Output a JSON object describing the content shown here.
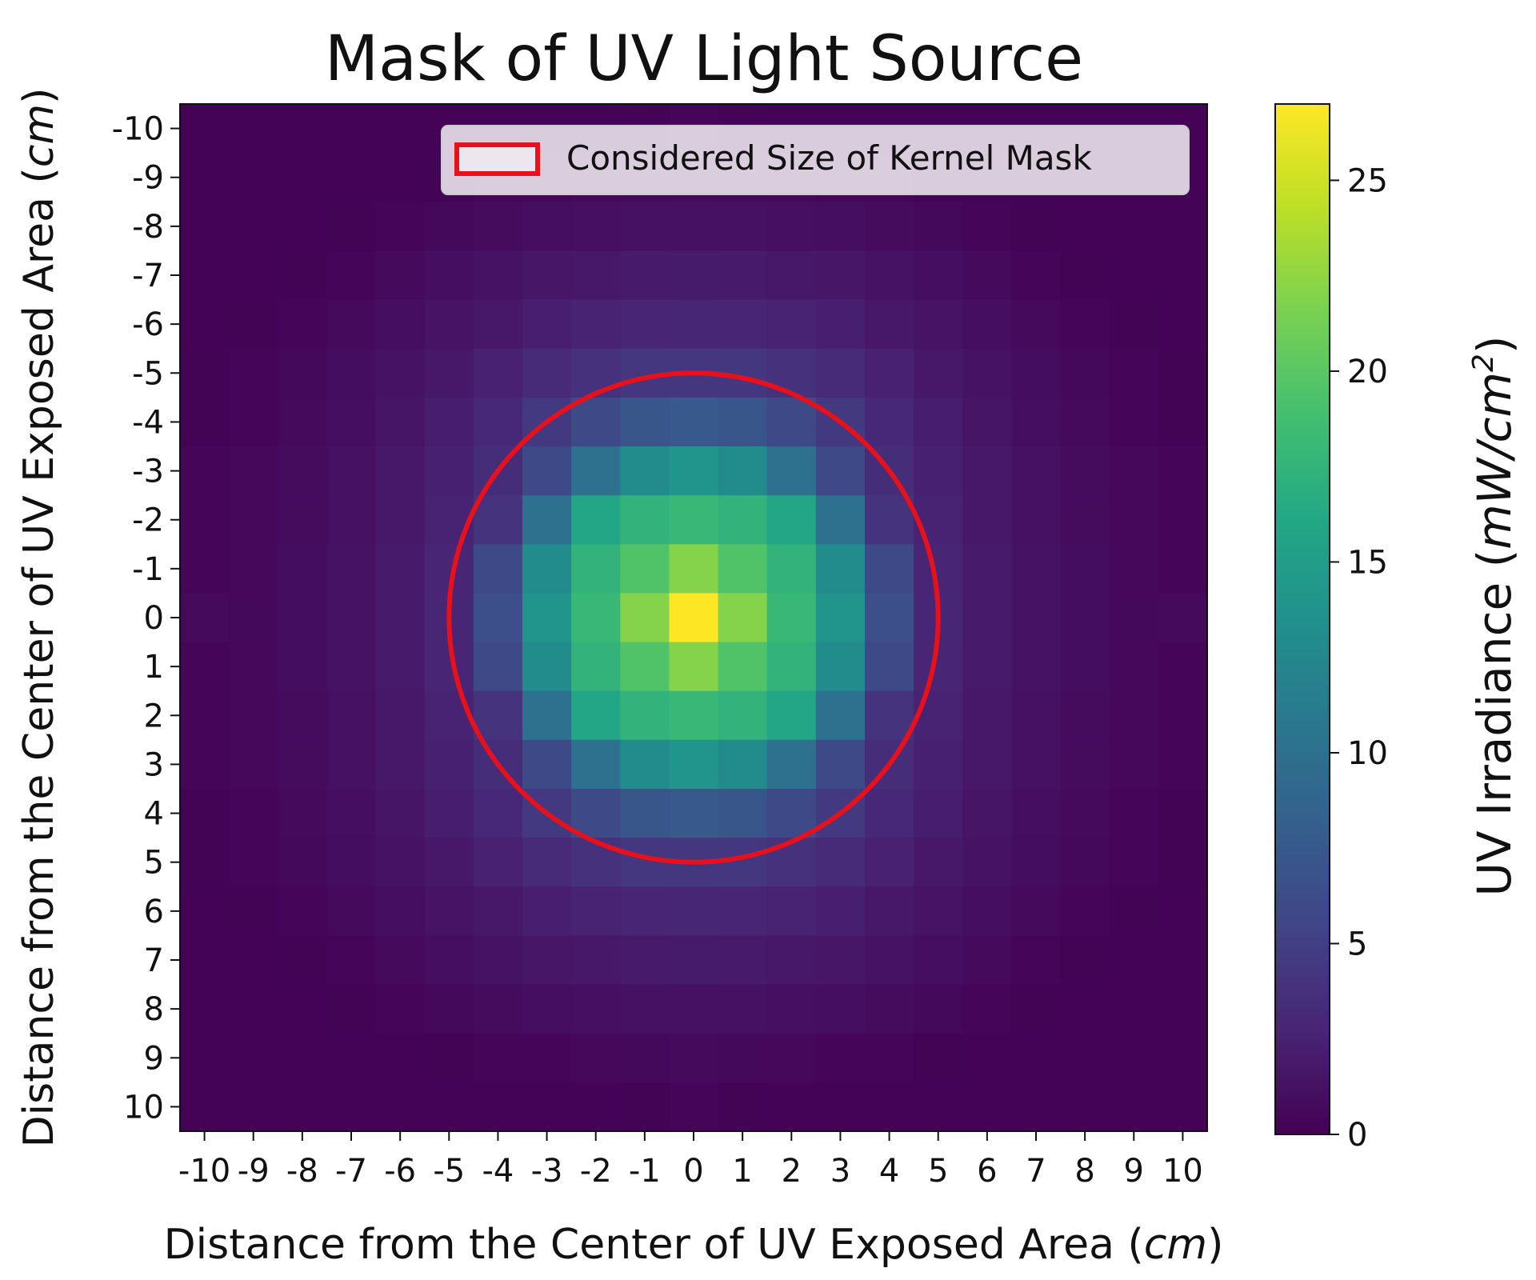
{
  "chart_data": {
    "type": "heatmap",
    "title": "Mask of UV Light Source",
    "xlabel_prefix": "Distance from the Center of UV Exposed Area (",
    "xlabel_unit": "cm",
    "xlabel_suffix": ")",
    "ylabel_prefix": "Distance from the Center of UV Exposed Area (",
    "ylabel_unit": "cm",
    "ylabel_suffix": ")",
    "x_ticks": [
      -10,
      -9,
      -8,
      -7,
      -6,
      -5,
      -4,
      -3,
      -2,
      -1,
      0,
      1,
      2,
      3,
      4,
      5,
      6,
      7,
      8,
      9,
      10
    ],
    "y_ticks": [
      -10,
      -9,
      -8,
      -7,
      -6,
      -5,
      -4,
      -3,
      -2,
      -1,
      0,
      1,
      2,
      3,
      4,
      5,
      6,
      7,
      8,
      9,
      10
    ],
    "xlim": [
      -10.5,
      10.5
    ],
    "ylim": [
      -10.5,
      10.5
    ],
    "y_inverted": true,
    "colormap": "viridis",
    "colorbar": {
      "label_prefix": "UV Irradiance (",
      "label_unit": "mW/cm",
      "label_exponent": "2",
      "label_suffix": ")",
      "range": [
        0,
        27
      ],
      "ticks": [
        0,
        5,
        10,
        15,
        20,
        25
      ]
    },
    "grid": false,
    "legend": {
      "position": "top-right",
      "label": "Considered Size of Kernel Mask",
      "color": "#e8101a"
    },
    "circle": {
      "center": [
        0,
        0
      ],
      "radius": 5,
      "color": "#e8101a"
    },
    "values": [
      [
        0.15,
        0.15,
        0.15,
        0.15,
        0.15,
        0.15,
        0.15,
        0.15,
        0.15,
        0.2,
        0.3,
        0.2,
        0.15,
        0.15,
        0.15,
        0.15,
        0.15,
        0.15,
        0.15,
        0.15,
        0.15
      ],
      [
        0.15,
        0.15,
        0.15,
        0.15,
        0.15,
        0.2,
        0.3,
        0.4,
        0.5,
        0.6,
        0.7,
        0.6,
        0.5,
        0.4,
        0.3,
        0.2,
        0.15,
        0.15,
        0.15,
        0.15,
        0.15
      ],
      [
        0.15,
        0.15,
        0.15,
        0.2,
        0.4,
        0.6,
        0.8,
        1.0,
        1.1,
        1.2,
        1.2,
        1.2,
        1.1,
        1.0,
        0.8,
        0.6,
        0.4,
        0.2,
        0.15,
        0.15,
        0.15
      ],
      [
        0.15,
        0.15,
        0.2,
        0.4,
        0.7,
        1.0,
        1.3,
        1.6,
        1.8,
        1.9,
        2.0,
        1.9,
        1.8,
        1.6,
        1.3,
        1.0,
        0.7,
        0.4,
        0.2,
        0.15,
        0.15
      ],
      [
        0.15,
        0.2,
        0.4,
        0.7,
        1.0,
        1.4,
        1.8,
        2.3,
        2.6,
        2.8,
        2.9,
        2.8,
        2.6,
        2.3,
        1.8,
        1.4,
        1.0,
        0.7,
        0.4,
        0.2,
        0.15
      ],
      [
        0.2,
        0.3,
        0.6,
        0.9,
        1.3,
        1.8,
        2.5,
        3.2,
        3.8,
        4.2,
        4.3,
        4.2,
        3.8,
        3.2,
        2.5,
        1.8,
        1.3,
        0.9,
        0.6,
        0.3,
        0.2
      ],
      [
        0.2,
        0.4,
        0.7,
        1.0,
        1.5,
        2.2,
        3.0,
        4.5,
        6.0,
        7.2,
        7.5,
        7.2,
        6.0,
        4.5,
        3.0,
        2.2,
        1.5,
        1.0,
        0.7,
        0.4,
        0.2
      ],
      [
        0.3,
        0.5,
        0.8,
        1.2,
        1.7,
        2.4,
        3.5,
        6.0,
        10.0,
        13.0,
        14.0,
        13.0,
        10.0,
        6.0,
        3.5,
        2.4,
        1.7,
        1.2,
        0.8,
        0.5,
        0.3
      ],
      [
        0.3,
        0.5,
        0.8,
        1.2,
        1.8,
        2.6,
        4.0,
        10.0,
        16.0,
        17.5,
        18.0,
        17.5,
        16.0,
        10.0,
        4.0,
        2.6,
        1.8,
        1.2,
        0.8,
        0.5,
        0.3
      ],
      [
        0.3,
        0.5,
        0.9,
        1.3,
        1.9,
        2.8,
        6.0,
        13.0,
        17.5,
        19.5,
        22.0,
        19.5,
        17.5,
        13.0,
        6.0,
        2.8,
        1.9,
        1.3,
        0.9,
        0.5,
        0.3
      ],
      [
        0.7,
        0.6,
        0.9,
        1.3,
        1.9,
        2.9,
        6.5,
        14.0,
        18.0,
        22.0,
        27.0,
        22.0,
        18.0,
        14.0,
        6.5,
        2.9,
        1.9,
        1.3,
        0.9,
        0.6,
        0.7
      ],
      [
        0.3,
        0.5,
        0.9,
        1.3,
        1.9,
        2.8,
        6.0,
        13.0,
        17.5,
        19.5,
        22.0,
        19.5,
        17.5,
        13.0,
        6.0,
        2.8,
        1.9,
        1.3,
        0.9,
        0.5,
        0.3
      ],
      [
        0.3,
        0.5,
        0.8,
        1.2,
        1.8,
        2.6,
        4.0,
        10.0,
        16.0,
        17.5,
        18.0,
        17.5,
        16.0,
        10.0,
        4.0,
        2.6,
        1.8,
        1.2,
        0.8,
        0.5,
        0.3
      ],
      [
        0.3,
        0.5,
        0.8,
        1.2,
        1.7,
        2.4,
        3.5,
        6.0,
        10.0,
        13.0,
        14.0,
        13.0,
        10.0,
        6.0,
        3.5,
        2.4,
        1.7,
        1.2,
        0.8,
        0.5,
        0.3
      ],
      [
        0.2,
        0.4,
        0.7,
        1.0,
        1.5,
        2.2,
        3.0,
        4.5,
        6.0,
        7.2,
        7.5,
        7.2,
        6.0,
        4.5,
        3.0,
        2.2,
        1.5,
        1.0,
        0.7,
        0.4,
        0.2
      ],
      [
        0.2,
        0.3,
        0.6,
        0.9,
        1.3,
        1.8,
        2.5,
        3.2,
        3.8,
        4.2,
        4.3,
        4.2,
        3.8,
        3.2,
        2.5,
        1.8,
        1.3,
        0.9,
        0.6,
        0.3,
        0.2
      ],
      [
        0.15,
        0.2,
        0.4,
        0.7,
        1.0,
        1.4,
        1.8,
        2.3,
        2.6,
        2.8,
        2.9,
        2.8,
        2.6,
        2.3,
        1.8,
        1.4,
        1.0,
        0.7,
        0.4,
        0.2,
        0.15
      ],
      [
        0.15,
        0.15,
        0.2,
        0.4,
        0.7,
        1.0,
        1.3,
        1.6,
        1.8,
        1.9,
        2.0,
        1.9,
        1.8,
        1.6,
        1.3,
        1.0,
        0.7,
        0.4,
        0.2,
        0.15,
        0.15
      ],
      [
        0.15,
        0.15,
        0.15,
        0.2,
        0.4,
        0.6,
        0.8,
        1.0,
        1.1,
        1.2,
        1.2,
        1.2,
        1.1,
        1.0,
        0.8,
        0.6,
        0.4,
        0.2,
        0.15,
        0.15,
        0.15
      ],
      [
        0.15,
        0.15,
        0.15,
        0.15,
        0.15,
        0.2,
        0.3,
        0.4,
        0.5,
        0.6,
        0.7,
        0.6,
        0.5,
        0.4,
        0.3,
        0.2,
        0.15,
        0.15,
        0.15,
        0.15,
        0.15
      ],
      [
        0.15,
        0.15,
        0.15,
        0.15,
        0.15,
        0.15,
        0.15,
        0.15,
        0.15,
        0.2,
        0.3,
        0.2,
        0.15,
        0.15,
        0.15,
        0.15,
        0.15,
        0.15,
        0.15,
        0.15,
        0.15
      ]
    ]
  }
}
